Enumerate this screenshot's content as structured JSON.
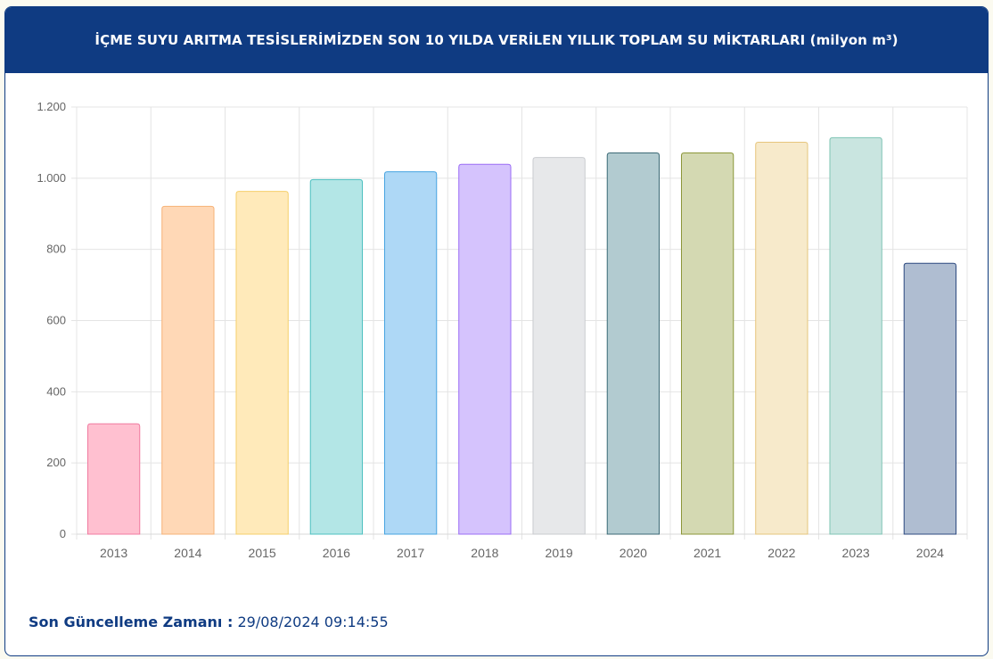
{
  "header": {
    "title": "İÇME SUYU ARITMA TESİSLERİMİZDEN SON 10 YILDA VERİLEN YILLIK TOPLAM SU MİKTARLARI (milyon m³)"
  },
  "footer": {
    "label": "Son Güncelleme Zamanı :",
    "value": "29/08/2024 09:14:55"
  },
  "chart_data": {
    "type": "bar",
    "categories": [
      "2013",
      "2014",
      "2015",
      "2016",
      "2017",
      "2018",
      "2019",
      "2020",
      "2021",
      "2022",
      "2023",
      "2024"
    ],
    "values": [
      310,
      921,
      963,
      996,
      1018,
      1039,
      1058,
      1071,
      1071,
      1101,
      1114,
      761
    ],
    "ylim": [
      0,
      1200
    ],
    "yticks": [
      0,
      200,
      400,
      600,
      800,
      1000,
      1200
    ],
    "ytick_labels": [
      "0",
      "200",
      "400",
      "600",
      "800",
      "1.000",
      "1.200"
    ],
    "grid": true,
    "bar_fill_colors": [
      "#ffc0d0",
      "#ffd8b6",
      "#ffeaba",
      "#b3e6e6",
      "#aed8f6",
      "#d5c3fd",
      "#e7e8ea",
      "#b2cbd0",
      "#d4d9b2",
      "#f7eacb",
      "#c9e5e0",
      "#afbdd1"
    ],
    "bar_stroke_colors": [
      "#f07aa0",
      "#f6b277",
      "#f5cf6a",
      "#4cc0c0",
      "#46a3e0",
      "#9b6cf5",
      "#c9cbcf",
      "#3c6a76",
      "#8b9638",
      "#e6c57c",
      "#7fc4b4",
      "#2d4a80"
    ]
  }
}
